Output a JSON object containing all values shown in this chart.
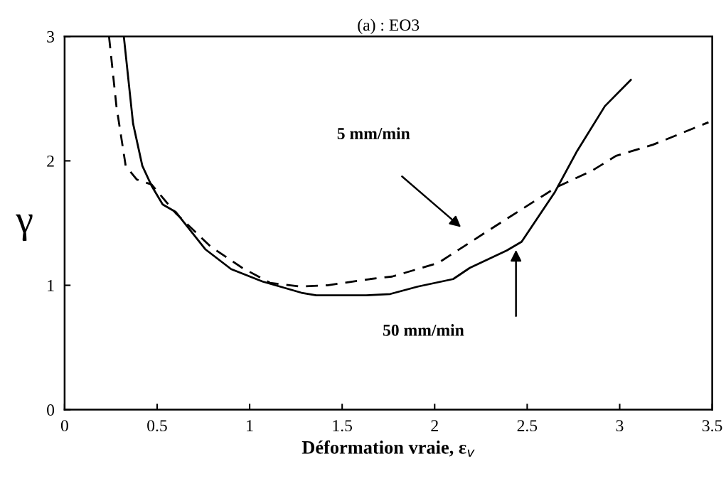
{
  "chart_data": {
    "type": "line",
    "title": "(a) : EO3",
    "xlabel": "Déformation vraie, ε$_{v}$",
    "ylabel": "γ",
    "xlim": [
      0,
      3.5
    ],
    "ylim": [
      0,
      3
    ],
    "xticks": [
      0,
      0.5,
      1,
      1.5,
      2,
      2.5,
      3,
      3.5
    ],
    "yticks": [
      0,
      1,
      2,
      3
    ],
    "grid": false,
    "legend": false,
    "annotations": [
      "5 mm/min",
      "50 mm/min"
    ],
    "series": [
      {
        "color": "#000000",
        "line_style": "solid",
        "x": [
          0.32,
          0.37,
          0.42,
          0.47,
          0.53,
          0.6,
          0.76,
          0.9,
          1.07,
          1.28,
          1.36,
          1.63,
          1.76,
          1.91,
          2.1,
          2.19,
          2.39,
          2.47,
          2.65,
          2.77,
          2.92,
          3.06
        ],
        "values": [
          3,
          2.3,
          1.96,
          1.8,
          1.65,
          1.59,
          1.29,
          1.13,
          1.03,
          0.94,
          0.92,
          0.92,
          0.93,
          0.99,
          1.05,
          1.14,
          1.28,
          1.35,
          1.75,
          2.08,
          2.44,
          2.65
        ]
      },
      {
        "color": "#000000",
        "line_style": "dashed",
        "x": [
          0.24,
          0.28,
          0.33,
          0.39,
          0.47,
          0.6,
          0.79,
          0.96,
          1.11,
          1.27,
          1.42,
          1.65,
          1.77,
          2.02,
          2.28,
          2.48,
          2.66,
          2.85,
          2.98,
          3.18,
          3.48
        ],
        "values": [
          3,
          2.44,
          1.96,
          1.85,
          1.81,
          1.58,
          1.31,
          1.14,
          1.02,
          0.99,
          1.0,
          1.05,
          1.07,
          1.18,
          1.43,
          1.62,
          1.79,
          1.92,
          2.04,
          2.13,
          2.31
        ]
      }
    ]
  }
}
